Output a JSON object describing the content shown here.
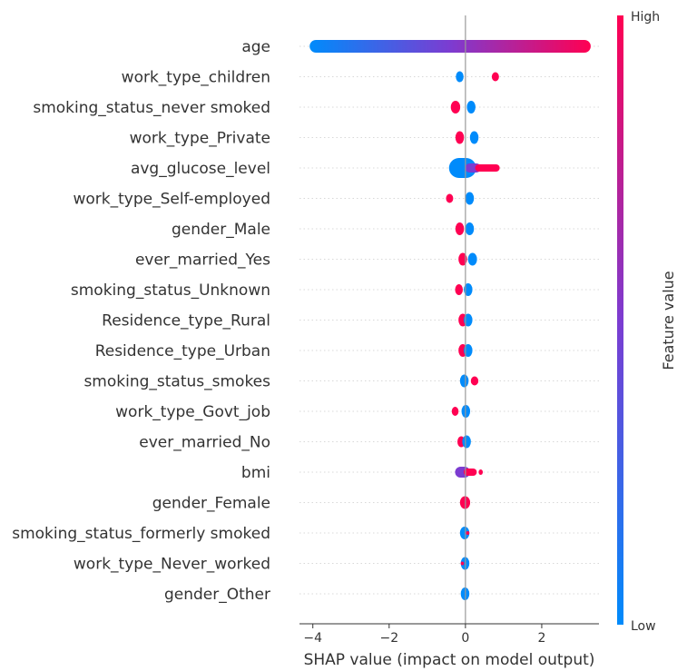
{
  "chart_data": {
    "type": "scatter",
    "title": "",
    "xlabel": "SHAP value (impact on model output)",
    "xlim": [
      -4.35,
      3.5
    ],
    "x_ticks": [
      -4,
      -2,
      0,
      2
    ],
    "x_tick_labels": [
      "−4",
      "−2",
      "0",
      "2"
    ],
    "grid": false,
    "colorbar": {
      "label": "Feature value",
      "high_label": "High",
      "low_label": "Low",
      "high_color": "#ff0052",
      "low_color": "#008bfb",
      "mid_color": "#7c3cd1"
    },
    "features": [
      {
        "name": "age",
        "groups": [
          {
            "min": -4.0,
            "max": 3.2,
            "color": "gradient",
            "thick": 14
          }
        ]
      },
      {
        "name": "work_type_children",
        "groups": [
          {
            "min": -0.18,
            "max": -0.12,
            "color": "low",
            "thick": 12
          },
          {
            "min": 0.75,
            "max": 0.82,
            "color": "high",
            "thick": 10
          }
        ]
      },
      {
        "name": "smoking_status_never smoked",
        "groups": [
          {
            "min": -0.3,
            "max": -0.22,
            "color": "high",
            "thick": 14
          },
          {
            "min": 0.12,
            "max": 0.18,
            "color": "low",
            "thick": 14
          }
        ]
      },
      {
        "name": "work_type_Private",
        "groups": [
          {
            "min": -0.18,
            "max": -0.12,
            "color": "high",
            "thick": 14
          },
          {
            "min": 0.2,
            "max": 0.26,
            "color": "low",
            "thick": 14
          }
        ]
      },
      {
        "name": "avg_glucose_level",
        "groups": [
          {
            "min": -0.3,
            "max": 0.15,
            "color": "low",
            "thick": 22
          },
          {
            "min": 0.05,
            "max": 0.35,
            "color": "mid",
            "thick": 10
          },
          {
            "min": 0.3,
            "max": 0.85,
            "color": "high",
            "thick": 8
          }
        ]
      },
      {
        "name": "work_type_Self-employed",
        "groups": [
          {
            "min": -0.45,
            "max": -0.38,
            "color": "high",
            "thick": 10
          },
          {
            "min": 0.08,
            "max": 0.14,
            "color": "low",
            "thick": 14
          }
        ]
      },
      {
        "name": "gender_Male",
        "groups": [
          {
            "min": -0.18,
            "max": -0.12,
            "color": "high",
            "thick": 14
          },
          {
            "min": 0.08,
            "max": 0.14,
            "color": "low",
            "thick": 14
          }
        ]
      },
      {
        "name": "ever_married_Yes",
        "groups": [
          {
            "min": -0.1,
            "max": -0.04,
            "color": "high",
            "thick": 14
          },
          {
            "min": 0.15,
            "max": 0.22,
            "color": "low",
            "thick": 14
          }
        ]
      },
      {
        "name": "smoking_status_Unknown",
        "groups": [
          {
            "min": -0.2,
            "max": -0.14,
            "color": "high",
            "thick": 12
          },
          {
            "min": 0.04,
            "max": 0.1,
            "color": "low",
            "thick": 14
          }
        ]
      },
      {
        "name": "Residence_type_Rural",
        "groups": [
          {
            "min": -0.1,
            "max": -0.04,
            "color": "high",
            "thick": 14
          },
          {
            "min": 0.04,
            "max": 0.1,
            "color": "low",
            "thick": 14
          }
        ]
      },
      {
        "name": "Residence_type_Urban",
        "groups": [
          {
            "min": -0.1,
            "max": -0.04,
            "color": "high",
            "thick": 14
          },
          {
            "min": 0.04,
            "max": 0.1,
            "color": "low",
            "thick": 14
          }
        ]
      },
      {
        "name": "smoking_status_smokes",
        "groups": [
          {
            "min": -0.06,
            "max": 0.0,
            "color": "low",
            "thick": 14
          },
          {
            "min": 0.2,
            "max": 0.28,
            "color": "high",
            "thick": 10
          }
        ]
      },
      {
        "name": "work_type_Govt_job",
        "groups": [
          {
            "min": -0.3,
            "max": -0.24,
            "color": "high",
            "thick": 10
          },
          {
            "min": -0.02,
            "max": 0.04,
            "color": "low",
            "thick": 14
          }
        ]
      },
      {
        "name": "ever_married_No",
        "groups": [
          {
            "min": -0.14,
            "max": -0.08,
            "color": "high",
            "thick": 12
          },
          {
            "min": 0.0,
            "max": 0.06,
            "color": "low",
            "thick": 14
          }
        ]
      },
      {
        "name": "bmi",
        "groups": [
          {
            "min": -0.2,
            "max": 0.05,
            "color": "mid",
            "thick": 12
          },
          {
            "min": 0.0,
            "max": 0.25,
            "color": "high",
            "thick": 8
          },
          {
            "min": 0.38,
            "max": 0.42,
            "color": "high",
            "thick": 6
          }
        ]
      },
      {
        "name": "gender_Female",
        "groups": [
          {
            "min": -0.06,
            "max": 0.04,
            "color": "high",
            "thick": 14
          }
        ]
      },
      {
        "name": "smoking_status_formerly smoked",
        "groups": [
          {
            "min": -0.06,
            "max": 0.02,
            "color": "low",
            "thick": 14
          },
          {
            "min": 0.04,
            "max": 0.08,
            "color": "high",
            "thick": 4
          }
        ]
      },
      {
        "name": "work_type_Never_worked",
        "groups": [
          {
            "min": -0.04,
            "max": 0.02,
            "color": "low",
            "thick": 14
          },
          {
            "min": -0.1,
            "max": -0.06,
            "color": "high",
            "thick": 4
          }
        ]
      },
      {
        "name": "gender_Other",
        "groups": [
          {
            "min": -0.04,
            "max": 0.02,
            "color": "low",
            "thick": 14
          }
        ]
      }
    ]
  }
}
